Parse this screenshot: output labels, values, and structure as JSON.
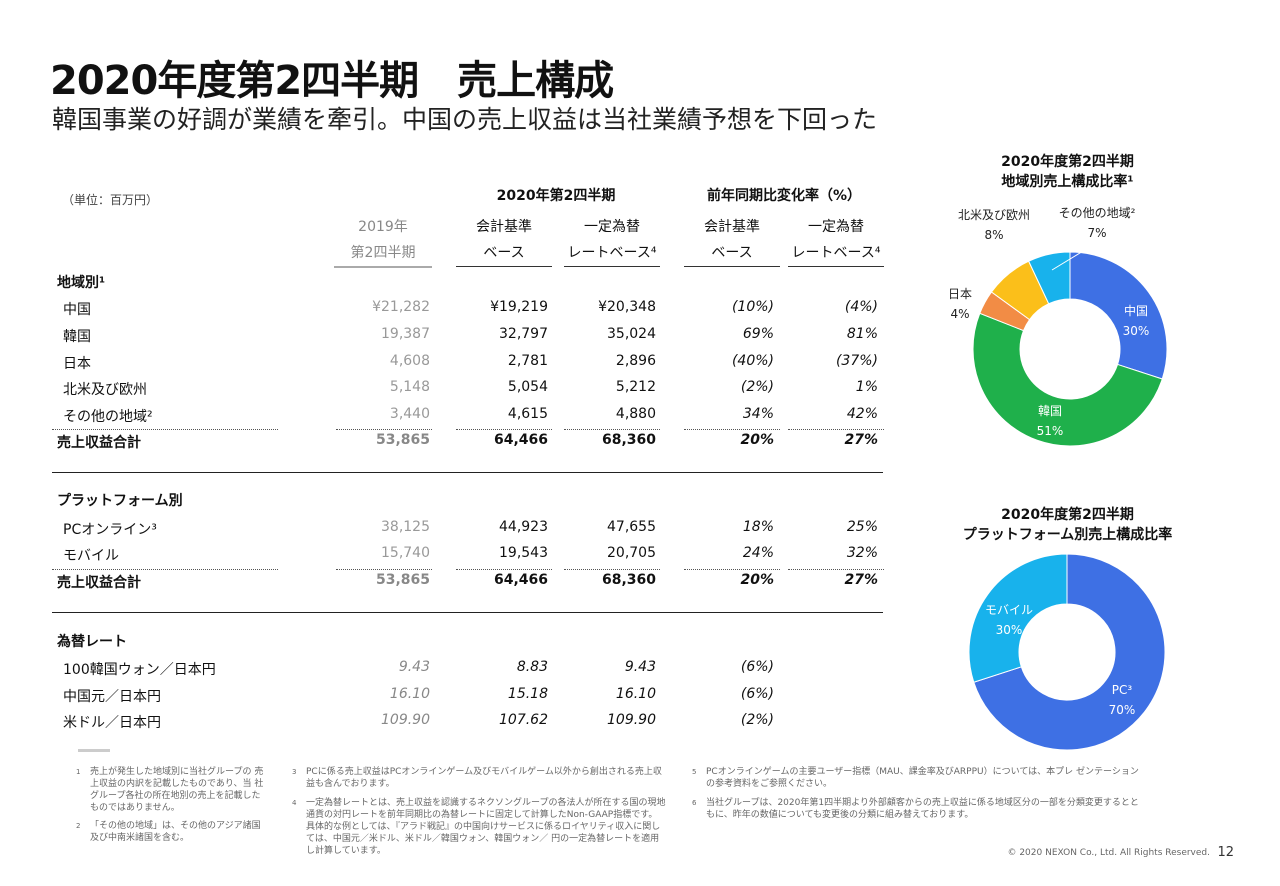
{
  "title": "2020年度第2四半期　売上構成",
  "subtitle": "韓国事業の好調が業績を牽引。中国の売上収益は当社業績予想を下回った",
  "unit": "（単位：百万円）",
  "header": {
    "group1": "2020年第2四半期",
    "group2": "前年同期比変化率（%）",
    "cols": [
      [
        "2019年",
        "第2四半期"
      ],
      [
        "会計基準",
        "ベース"
      ],
      [
        "一定為替",
        "レートベース⁴"
      ],
      [
        "会計基準",
        "ベース"
      ],
      [
        "一定為替",
        "レートベース⁴"
      ]
    ]
  },
  "sections": [
    {
      "title": "地域別¹",
      "rows": [
        {
          "label": "中国",
          "v": [
            "¥21,282",
            "¥19,219",
            "¥20,348",
            "(10%)",
            "(4%)"
          ]
        },
        {
          "label": "韓国",
          "v": [
            "19,387",
            "32,797",
            "35,024",
            "69%",
            "81%"
          ]
        },
        {
          "label": "日本",
          "v": [
            "4,608",
            "2,781",
            "2,896",
            "(40%)",
            "(37%)"
          ]
        },
        {
          "label": "北米及び欧州",
          "v": [
            "5,148",
            "5,054",
            "5,212",
            "(2%)",
            "1%"
          ]
        },
        {
          "label": "その他の地域²",
          "v": [
            "3,440",
            "4,615",
            "4,880",
            "34%",
            "42%"
          ]
        }
      ],
      "total": {
        "label": "売上収益合計",
        "v": [
          "53,865",
          "64,466",
          "68,360",
          "20%",
          "27%"
        ]
      }
    },
    {
      "title": "プラットフォーム別",
      "rows": [
        {
          "label": "PCオンライン³",
          "v": [
            "38,125",
            "44,923",
            "47,655",
            "18%",
            "25%"
          ]
        },
        {
          "label": "モバイル",
          "v": [
            "15,740",
            "19,543",
            "20,705",
            "24%",
            "32%"
          ]
        }
      ],
      "total": {
        "label": "売上収益合計",
        "v": [
          "53,865",
          "64,466",
          "68,360",
          "20%",
          "27%"
        ]
      }
    },
    {
      "title": "為替レート",
      "rows": [
        {
          "label": "100韓国ウォン／日本円",
          "v": [
            "9.43",
            "8.83",
            "9.43",
            "(6%)",
            ""
          ]
        },
        {
          "label": "中国元／日本円",
          "v": [
            "16.10",
            "15.18",
            "16.10",
            "(6%)",
            ""
          ]
        },
        {
          "label": "米ドル／日本円",
          "v": [
            "109.90",
            "107.62",
            "109.90",
            "(2%)",
            ""
          ]
        }
      ]
    }
  ],
  "footnotes": [
    {
      "n": "1",
      "text": "売上が発生した地域別に当社グループの 売上収益の内訳を記載したものであり、当 社グループ各社の所在地別の売上を記載したものではありません。"
    },
    {
      "n": "2",
      "text": "「その他の地域」は、その他のアジア諸国及び中南米諸国を含む。"
    },
    {
      "n": "3",
      "text": "PCに係る売上収益はPCオンラインゲーム及びモバイルゲーム以外から創出される売上収益も含んでおります。"
    },
    {
      "n": "4",
      "text": "一定為替レートとは、売上収益を認識するネクソングループの各法人が所在する国の現地通貨の対円レートを前年同期比の為替レートに固定して計算したNon-GAAP指標です。具体的な例としては、『アラド戦記』の中国向けサービスに係るロイヤリティ収入に関しては、中国元／米ドル、米ドル／韓国ウォン、韓国ウォン／ 円の一定為替レートを適用し計算しています。"
    },
    {
      "n": "5",
      "text": "PCオンラインゲームの主要ユーザー指標（MAU、課金率及びARPPU）については、本プレ ゼンテーションの参考資料をご参照ください。"
    },
    {
      "n": "6",
      "text": "当社グループは、2020年第1四半期より外部顧客からの売上収益に係る地域区分の一部を分類変更するとともに、昨年の数値についても変更後の分類に組み替えております。"
    }
  ],
  "copyright": "© 2020 NEXON Co., Ltd. All Rights Reserved.",
  "page_number": "12",
  "chart_data": [
    {
      "type": "pie",
      "title": "2020年度第2四半期 地域別売上構成比率¹",
      "title_lines": [
        "2020年度第2四半期",
        "地域別売上構成比率¹"
      ],
      "categories": [
        "中国",
        "韓国",
        "日本",
        "北米及び欧州",
        "その他の地域²"
      ],
      "values": [
        30,
        51,
        4,
        8,
        7
      ],
      "labels": [
        "30%",
        "51%",
        "4%",
        "8%",
        "7%"
      ],
      "colors": [
        "#3e70e4",
        "#1fb04b",
        "#f28c45",
        "#fbbf1a",
        "#18b2ec"
      ]
    },
    {
      "type": "pie",
      "title": "2020年度第2四半期 プラットフォーム別売上構成比率",
      "title_lines": [
        "2020年度第2四半期",
        "プラットフォーム別売上構成比率"
      ],
      "categories": [
        "PC³",
        "モバイル"
      ],
      "values": [
        70,
        30
      ],
      "labels": [
        "70%",
        "30%"
      ],
      "colors": [
        "#3e70e4",
        "#18b2ec"
      ]
    }
  ]
}
